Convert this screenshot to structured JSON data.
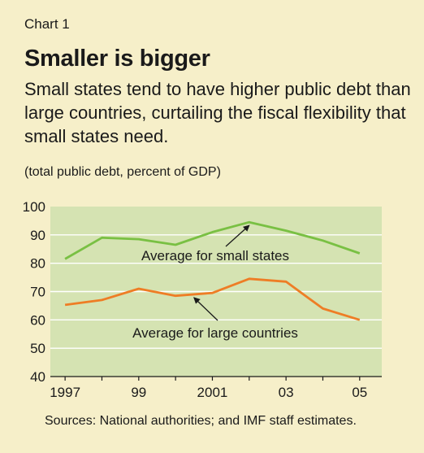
{
  "header": {
    "chart_number": "Chart 1",
    "title": "Smaller is bigger",
    "subtitle": "Small states tend to have higher public debt than large countries, curtailing the fiscal flexibility that small states need.",
    "units": "(total public debt, percent of GDP)"
  },
  "source": "Sources: National authorities; and IMF staff estimates.",
  "colors": {
    "background": "#f6efc9",
    "plot_area": "#d5e3b2",
    "grid": "#ffffff",
    "small_states": "#79c043",
    "large_countries": "#ee7d25"
  },
  "chart_data": {
    "type": "line",
    "title": "Smaller is bigger",
    "ylabel": "total public debt, percent of GDP",
    "ylim": [
      40,
      100
    ],
    "yticks": [
      40,
      50,
      60,
      70,
      80,
      90,
      100
    ],
    "xlim": [
      1996.6,
      2005.6
    ],
    "xticks": [
      {
        "value": 1997,
        "label": "1997"
      },
      {
        "value": 1999,
        "label": "99"
      },
      {
        "value": 2001,
        "label": "2001"
      },
      {
        "value": 2003,
        "label": "03"
      },
      {
        "value": 2005,
        "label": "05"
      }
    ],
    "grid": true,
    "x": [
      1997,
      1998,
      1999,
      2000,
      2001,
      2002,
      2003,
      2004,
      2005
    ],
    "series": [
      {
        "name": "Average for small states",
        "values": [
          81.5,
          89,
          88.5,
          86.5,
          91,
          94.5,
          91.5,
          88,
          83.5
        ]
      },
      {
        "name": "Average for large countries",
        "values": [
          65.3,
          67,
          71,
          68.5,
          69.5,
          74.5,
          73.5,
          64,
          60
        ]
      }
    ],
    "annotations": [
      {
        "text": "Average for small states",
        "series": 0,
        "arrow_to_x": 2002
      },
      {
        "text": "Average for large countries",
        "series": 1,
        "arrow_to_x": 2000.5
      }
    ]
  }
}
